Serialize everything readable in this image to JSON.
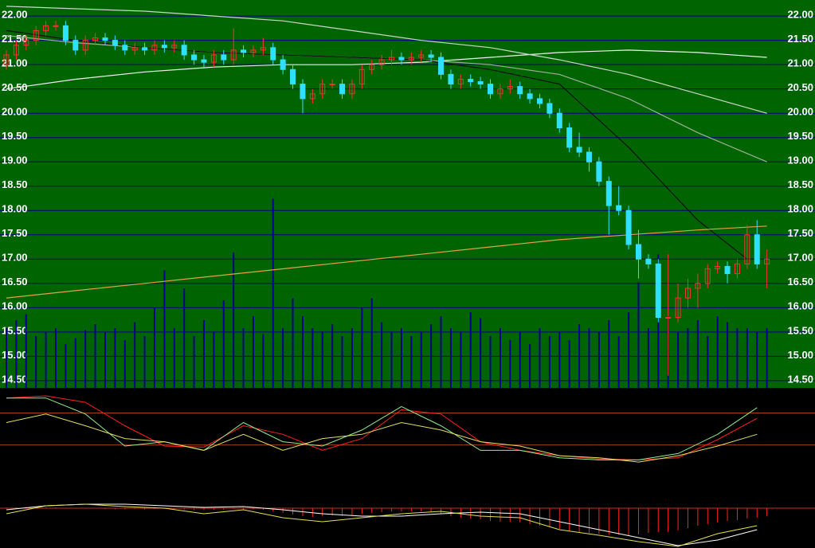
{
  "chart_data": [
    {
      "type": "candlestick",
      "ylim": [
        14.35,
        22.33
      ],
      "xlim": [
        -0.645,
        78.4
      ],
      "yticks": [
        {
          "value": 22,
          "label": "22.00"
        },
        {
          "value": 21.5,
          "label": "21.50"
        },
        {
          "value": 21,
          "label": "21.00"
        },
        {
          "value": 20.5,
          "label": "20.50"
        },
        {
          "value": 20,
          "label": "20.00"
        },
        {
          "value": 19.5,
          "label": "19.50"
        },
        {
          "value": 19,
          "label": "19.00"
        },
        {
          "value": 18.5,
          "label": "18.50"
        },
        {
          "value": 18,
          "label": "18.00"
        },
        {
          "value": 17.5,
          "label": "17.50"
        },
        {
          "value": 17,
          "label": "17.00"
        },
        {
          "value": 16.5,
          "label": "16.50"
        },
        {
          "value": 16,
          "label": "16.00"
        },
        {
          "value": 15.5,
          "label": "15.50"
        },
        {
          "value": 15,
          "label": "15.00"
        },
        {
          "value": 14.5,
          "label": "14.50"
        }
      ],
      "grid": true,
      "grid_color": "#000080",
      "background": "#006400",
      "up_color": "#ff3030",
      "down_color": "#30e0ff",
      "open": [
        21.0,
        21.2,
        21.4,
        21.5,
        21.7,
        21.8,
        21.8,
        21.5,
        21.3,
        21.5,
        21.55,
        21.5,
        21.4,
        21.3,
        21.35,
        21.3,
        21.4,
        21.35,
        21.4,
        21.2,
        21.1,
        21.05,
        21.2,
        21.1,
        21.3,
        21.25,
        21.3,
        21.35,
        21.1,
        20.9,
        20.6,
        20.3,
        20.4,
        20.6,
        20.6,
        20.4,
        20.6,
        20.9,
        21.0,
        21.1,
        21.15,
        21.1,
        21.15,
        21.2,
        21.15,
        20.8,
        20.6,
        20.7,
        20.65,
        20.6,
        20.4,
        20.5,
        20.55,
        20.4,
        20.3,
        20.2,
        20.0,
        19.7,
        19.3,
        19.2,
        19.0,
        18.6,
        18.1,
        18.0,
        17.3,
        17.0,
        16.9,
        15.8,
        15.8,
        16.2,
        16.4,
        16.5,
        16.8,
        16.85,
        16.7,
        16.9,
        17.5,
        16.9
      ],
      "high": [
        21.3,
        21.5,
        21.6,
        21.8,
        21.9,
        21.9,
        21.9,
        21.6,
        21.6,
        21.65,
        21.65,
        21.6,
        21.5,
        21.45,
        21.45,
        21.5,
        21.5,
        21.5,
        21.5,
        21.3,
        21.2,
        21.3,
        21.3,
        21.75,
        21.4,
        21.4,
        21.55,
        21.45,
        21.2,
        21.0,
        20.7,
        20.5,
        20.7,
        20.7,
        20.7,
        20.7,
        21.0,
        21.1,
        21.2,
        21.3,
        21.25,
        21.25,
        21.3,
        21.3,
        21.25,
        20.9,
        20.8,
        20.8,
        20.75,
        20.7,
        20.6,
        20.7,
        20.65,
        20.5,
        20.4,
        20.3,
        20.1,
        19.8,
        19.6,
        19.3,
        19.1,
        18.7,
        18.5,
        18.1,
        17.6,
        17.1,
        17.0,
        17.1,
        16.5,
        16.6,
        16.7,
        16.9,
        16.95,
        16.95,
        17.0,
        17.7,
        17.8,
        17.2
      ],
      "low": [
        20.9,
        21.1,
        21.3,
        21.4,
        21.6,
        21.7,
        21.4,
        21.2,
        21.2,
        21.4,
        21.4,
        21.3,
        21.2,
        21.2,
        21.2,
        21.2,
        21.25,
        21.25,
        21.1,
        21.0,
        20.95,
        20.95,
        21.0,
        21.0,
        21.15,
        21.15,
        21.2,
        21.0,
        20.8,
        20.5,
        20.0,
        20.2,
        20.3,
        20.5,
        20.3,
        20.3,
        20.5,
        20.8,
        20.9,
        21.0,
        21.0,
        21.0,
        21.05,
        21.05,
        20.7,
        20.5,
        20.5,
        20.55,
        20.5,
        20.3,
        20.3,
        20.4,
        20.3,
        20.2,
        20.1,
        19.9,
        19.6,
        19.2,
        19.1,
        18.8,
        18.5,
        17.5,
        17.9,
        17.2,
        16.6,
        16.8,
        15.7,
        14.6,
        15.7,
        16.0,
        16.0,
        16.4,
        16.7,
        16.5,
        16.6,
        16.8,
        16.8,
        16.4
      ],
      "close": [
        21.2,
        21.4,
        21.5,
        21.7,
        21.8,
        21.8,
        21.5,
        21.3,
        21.5,
        21.55,
        21.5,
        21.4,
        21.3,
        21.35,
        21.3,
        21.4,
        21.35,
        21.4,
        21.2,
        21.1,
        21.05,
        21.2,
        21.1,
        21.3,
        21.25,
        21.3,
        21.35,
        21.1,
        20.9,
        20.6,
        20.3,
        20.4,
        20.6,
        20.6,
        20.4,
        20.6,
        20.9,
        21.0,
        21.1,
        21.15,
        21.1,
        21.15,
        21.2,
        21.15,
        20.8,
        20.6,
        20.7,
        20.65,
        20.6,
        20.4,
        20.5,
        20.55,
        20.4,
        20.3,
        20.2,
        20.0,
        19.7,
        19.3,
        19.2,
        19.0,
        18.6,
        18.1,
        18.0,
        17.3,
        17.0,
        16.9,
        15.8,
        15.8,
        16.2,
        16.4,
        16.5,
        16.8,
        16.85,
        16.7,
        16.9,
        17.5,
        16.9,
        17.0
      ],
      "volume": [
        30,
        34,
        37,
        26,
        28,
        30,
        22,
        25,
        29,
        32,
        28,
        30,
        24,
        33,
        26,
        40,
        59,
        30,
        50,
        26,
        34,
        28,
        44,
        68,
        30,
        36,
        27,
        95,
        30,
        45,
        36,
        30,
        28,
        32,
        26,
        30,
        40,
        45,
        33,
        28,
        30,
        26,
        28,
        32,
        36,
        30,
        28,
        38,
        35,
        26,
        30,
        24,
        28,
        22,
        30,
        26,
        28,
        24,
        32,
        30,
        28,
        34,
        26,
        38,
        53,
        30,
        67,
        36,
        28,
        30,
        34,
        26,
        36,
        33,
        30,
        30,
        28,
        30
      ],
      "volume_lim": [
        0,
        100
      ],
      "volume_color": "#000090",
      "lines": [
        {
          "color": "#f0f0f0",
          "x": [
            0,
            7,
            14,
            21,
            28,
            35,
            42,
            49,
            56,
            63,
            70,
            77
          ],
          "values": [
            20.5,
            20.7,
            20.85,
            20.95,
            21.0,
            21.0,
            21.05,
            21.15,
            21.25,
            21.3,
            21.25,
            21.15
          ]
        },
        {
          "color": "#c8d8c8",
          "x": [
            0,
            7,
            14,
            21,
            28,
            35,
            42,
            49,
            56,
            63,
            70,
            77
          ],
          "values": [
            22.2,
            22.15,
            22.1,
            22.0,
            21.9,
            21.7,
            21.5,
            21.35,
            21.1,
            20.8,
            20.4,
            20.0
          ]
        },
        {
          "color": "#a0b0a0",
          "x": [
            0,
            7,
            14,
            21,
            28,
            35,
            42,
            49,
            56,
            63,
            70,
            77
          ],
          "values": [
            21.6,
            21.45,
            21.35,
            21.25,
            21.2,
            21.15,
            21.1,
            21.0,
            20.8,
            20.3,
            19.6,
            19.0
          ]
        },
        {
          "color": "#101010",
          "x": [
            0,
            7,
            14,
            21,
            28,
            35,
            42,
            49,
            56,
            63,
            70,
            75
          ],
          "values": [
            21.7,
            21.5,
            21.35,
            21.25,
            21.2,
            21.15,
            21.1,
            20.9,
            20.6,
            19.3,
            17.8,
            17.0
          ]
        },
        {
          "color": "#e8a040",
          "x": [
            0,
            7,
            14,
            21,
            28,
            35,
            42,
            49,
            56,
            63,
            70,
            77
          ],
          "values": [
            16.2,
            16.35,
            16.5,
            16.65,
            16.8,
            16.95,
            17.1,
            17.25,
            17.4,
            17.5,
            17.6,
            17.68
          ]
        }
      ]
    },
    {
      "type": "line",
      "ylim": [
        0,
        100
      ],
      "xlim": [
        -0.645,
        78.4
      ],
      "hlines": [
        81,
        51
      ],
      "hline_color": "#a04020",
      "background": "#000000",
      "x": [
        0,
        4,
        8,
        12,
        16,
        20,
        24,
        28,
        32,
        36,
        40,
        44,
        48,
        52,
        56,
        60,
        64,
        68,
        72,
        76
      ],
      "series": [
        {
          "color": "#ff2020",
          "values": [
            95,
            97,
            91,
            69,
            50,
            49,
            69,
            61,
            46,
            57,
            84,
            80,
            54,
            46,
            41,
            38,
            37,
            39,
            56,
            76
          ]
        },
        {
          "color": "#90ee90",
          "values": [
            95,
            95,
            80,
            50,
            54,
            46,
            72,
            54,
            50,
            65,
            87,
            69,
            46,
            46,
            39,
            37,
            37,
            43,
            61,
            86
          ]
        },
        {
          "color": "#e0e060",
          "values": [
            72,
            80,
            69,
            57,
            54,
            46,
            61,
            46,
            57,
            61,
            72,
            65,
            54,
            50,
            41,
            39,
            35,
            41,
            50,
            61
          ]
        }
      ]
    },
    {
      "type": "macd",
      "ylim": [
        -1.0,
        0.12
      ],
      "xlim": [
        -0.645,
        78.4
      ],
      "hlines": [
        0
      ],
      "hline_color": "#c03020",
      "background": "#000000",
      "hist_color": "#ff2020",
      "hist": [
        0.02,
        0.02,
        0.03,
        0.03,
        0.02,
        0.02,
        0.01,
        0.01,
        0.01,
        0.01,
        -0.02,
        -0.03,
        -0.03,
        -0.02,
        -0.03,
        -0.02,
        -0.02,
        -0.03,
        -0.04,
        -0.05,
        -0.05,
        -0.04,
        -0.04,
        -0.03,
        -0.03,
        -0.03,
        -0.04,
        -0.08,
        -0.12,
        -0.16,
        -0.2,
        -0.22,
        -0.2,
        -0.18,
        -0.2,
        -0.18,
        -0.15,
        -0.12,
        -0.1,
        -0.08,
        -0.08,
        -0.08,
        -0.08,
        -0.1,
        -0.14,
        -0.2,
        -0.24,
        -0.26,
        -0.28,
        -0.32,
        -0.34,
        -0.34,
        -0.36,
        -0.4,
        -0.44,
        -0.48,
        -0.52,
        -0.56,
        -0.6,
        -0.62,
        -0.64,
        -0.66,
        -0.66,
        -0.68,
        -0.66,
        -0.62,
        -0.6,
        -0.6,
        -0.56,
        -0.5,
        -0.44,
        -0.4,
        -0.36,
        -0.32,
        -0.3,
        -0.26,
        -0.24,
        -0.2
      ],
      "x": [
        0,
        4,
        8,
        12,
        16,
        20,
        24,
        28,
        32,
        36,
        40,
        44,
        48,
        52,
        56,
        60,
        64,
        68,
        72,
        76
      ],
      "series": [
        {
          "color": "#ffffff",
          "values": [
            -0.04,
            0.06,
            0.1,
            0.1,
            0.06,
            0.02,
            0.04,
            -0.04,
            -0.14,
            -0.2,
            -0.2,
            -0.14,
            -0.1,
            -0.14,
            -0.34,
            -0.54,
            -0.74,
            -0.94,
            -0.8,
            -0.54
          ]
        },
        {
          "color": "#e8e050",
          "values": [
            -0.14,
            0.06,
            0.1,
            0.04,
            0,
            -0.14,
            -0.04,
            -0.24,
            -0.34,
            -0.24,
            -0.14,
            -0.08,
            -0.2,
            -0.24,
            -0.54,
            -0.68,
            -0.84,
            -0.96,
            -0.64,
            -0.44
          ]
        }
      ]
    }
  ]
}
